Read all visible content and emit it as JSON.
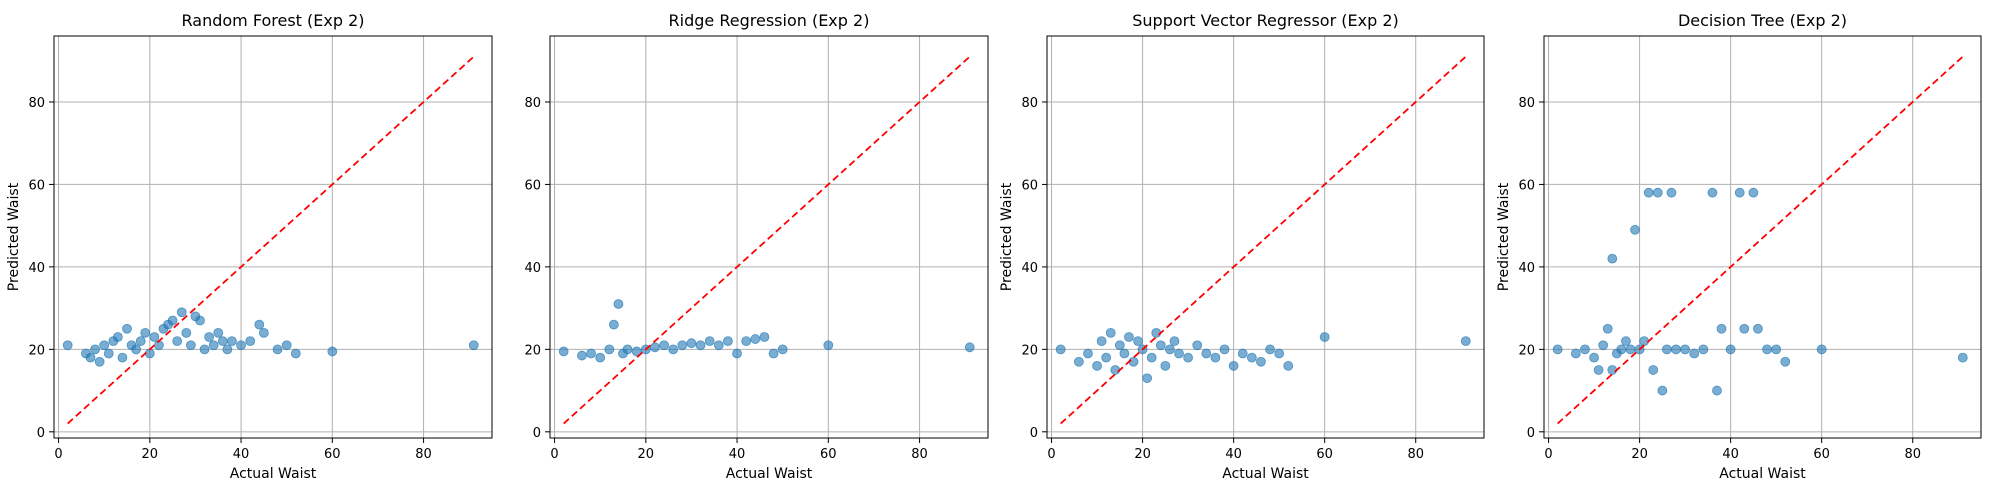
{
  "chart_data": [
    {
      "type": "scatter",
      "title": "Random Forest (Exp 2)",
      "xlabel": "Actual Waist",
      "ylabel": "Predicted Waist",
      "xlim": [
        -1,
        95
      ],
      "ylim": [
        -1.5,
        96
      ],
      "xticks": [
        0,
        20,
        40,
        60,
        80
      ],
      "yticks": [
        0,
        20,
        40,
        60,
        80
      ],
      "grid": true,
      "point_color": "#1f77b4",
      "reference_line": {
        "from": [
          2,
          2
        ],
        "to": [
          91,
          91
        ],
        "color": "#ff0000",
        "style": "dashed"
      },
      "points": [
        [
          2,
          21
        ],
        [
          6,
          19
        ],
        [
          7,
          18
        ],
        [
          8,
          20
        ],
        [
          9,
          17
        ],
        [
          10,
          21
        ],
        [
          11,
          19
        ],
        [
          12,
          22
        ],
        [
          13,
          23
        ],
        [
          14,
          18
        ],
        [
          15,
          25
        ],
        [
          16,
          21
        ],
        [
          17,
          20
        ],
        [
          18,
          22
        ],
        [
          19,
          24
        ],
        [
          20,
          19
        ],
        [
          21,
          23
        ],
        [
          22,
          21
        ],
        [
          23,
          25
        ],
        [
          24,
          26
        ],
        [
          25,
          27
        ],
        [
          26,
          22
        ],
        [
          27,
          29
        ],
        [
          28,
          24
        ],
        [
          29,
          21
        ],
        [
          30,
          28
        ],
        [
          31,
          27
        ],
        [
          32,
          20
        ],
        [
          33,
          23
        ],
        [
          34,
          21
        ],
        [
          35,
          24
        ],
        [
          36,
          22
        ],
        [
          37,
          20
        ],
        [
          38,
          22
        ],
        [
          40,
          21
        ],
        [
          42,
          22
        ],
        [
          44,
          26
        ],
        [
          45,
          24
        ],
        [
          48,
          20
        ],
        [
          50,
          21
        ],
        [
          52,
          19
        ],
        [
          60,
          19.5
        ],
        [
          91,
          21
        ]
      ]
    },
    {
      "type": "scatter",
      "title": "Ridge Regression (Exp 2)",
      "xlabel": "Actual Waist",
      "ylabel": "",
      "xlim": [
        -1,
        95
      ],
      "ylim": [
        -1.5,
        96
      ],
      "xticks": [
        0,
        20,
        40,
        60,
        80
      ],
      "yticks": [
        0,
        20,
        40,
        60,
        80
      ],
      "grid": true,
      "point_color": "#1f77b4",
      "reference_line": {
        "from": [
          2,
          2
        ],
        "to": [
          91,
          91
        ],
        "color": "#ff0000",
        "style": "dashed"
      },
      "points": [
        [
          2,
          19.5
        ],
        [
          6,
          18.5
        ],
        [
          8,
          19
        ],
        [
          10,
          18
        ],
        [
          12,
          20
        ],
        [
          13,
          26
        ],
        [
          14,
          31
        ],
        [
          15,
          19
        ],
        [
          16,
          20
        ],
        [
          18,
          19.5
        ],
        [
          20,
          20
        ],
        [
          22,
          20.5
        ],
        [
          24,
          21
        ],
        [
          26,
          20
        ],
        [
          28,
          21
        ],
        [
          30,
          21.5
        ],
        [
          32,
          21
        ],
        [
          34,
          22
        ],
        [
          36,
          21
        ],
        [
          38,
          22
        ],
        [
          40,
          19
        ],
        [
          42,
          22
        ],
        [
          44,
          22.5
        ],
        [
          46,
          23
        ],
        [
          48,
          19
        ],
        [
          50,
          20
        ],
        [
          60,
          21
        ],
        [
          91,
          20.5
        ]
      ]
    },
    {
      "type": "scatter",
      "title": "Support Vector Regressor (Exp 2)",
      "xlabel": "Actual Waist",
      "ylabel": "Predicted Waist",
      "xlim": [
        -1,
        95
      ],
      "ylim": [
        -1.5,
        96
      ],
      "xticks": [
        0,
        20,
        40,
        60,
        80
      ],
      "yticks": [
        0,
        20,
        40,
        60,
        80
      ],
      "grid": true,
      "point_color": "#1f77b4",
      "reference_line": {
        "from": [
          2,
          2
        ],
        "to": [
          91,
          91
        ],
        "color": "#ff0000",
        "style": "dashed"
      },
      "points": [
        [
          2,
          20
        ],
        [
          6,
          17
        ],
        [
          8,
          19
        ],
        [
          10,
          16
        ],
        [
          11,
          22
        ],
        [
          12,
          18
        ],
        [
          13,
          24
        ],
        [
          14,
          15
        ],
        [
          15,
          21
        ],
        [
          16,
          19
        ],
        [
          17,
          23
        ],
        [
          18,
          17
        ],
        [
          19,
          22
        ],
        [
          20,
          20
        ],
        [
          21,
          13
        ],
        [
          22,
          18
        ],
        [
          23,
          24
        ],
        [
          24,
          21
        ],
        [
          25,
          16
        ],
        [
          26,
          20
        ],
        [
          27,
          22
        ],
        [
          28,
          19
        ],
        [
          30,
          18
        ],
        [
          32,
          21
        ],
        [
          34,
          19
        ],
        [
          36,
          18
        ],
        [
          38,
          20
        ],
        [
          40,
          16
        ],
        [
          42,
          19
        ],
        [
          44,
          18
        ],
        [
          46,
          17
        ],
        [
          48,
          20
        ],
        [
          50,
          19
        ],
        [
          52,
          16
        ],
        [
          60,
          23
        ],
        [
          91,
          22
        ]
      ]
    },
    {
      "type": "scatter",
      "title": "Decision Tree (Exp 2)",
      "xlabel": "Actual Waist",
      "ylabel": "Predicted Waist",
      "xlim": [
        -1,
        95
      ],
      "ylim": [
        -1.5,
        96
      ],
      "xticks": [
        0,
        20,
        40,
        60,
        80
      ],
      "yticks": [
        0,
        20,
        40,
        60,
        80
      ],
      "grid": true,
      "point_color": "#1f77b4",
      "reference_line": {
        "from": [
          2,
          2
        ],
        "to": [
          91,
          91
        ],
        "color": "#ff0000",
        "style": "dashed"
      },
      "points": [
        [
          2,
          20
        ],
        [
          6,
          19
        ],
        [
          8,
          20
        ],
        [
          10,
          18
        ],
        [
          11,
          15
        ],
        [
          12,
          21
        ],
        [
          13,
          25
        ],
        [
          14,
          15
        ],
        [
          14,
          42
        ],
        [
          15,
          19
        ],
        [
          16,
          20
        ],
        [
          17,
          22
        ],
        [
          18,
          20
        ],
        [
          19,
          49
        ],
        [
          20,
          20
        ],
        [
          21,
          22
        ],
        [
          22,
          58
        ],
        [
          23,
          15
        ],
        [
          24,
          58
        ],
        [
          25,
          10
        ],
        [
          26,
          20
        ],
        [
          27,
          58
        ],
        [
          28,
          20
        ],
        [
          30,
          20
        ],
        [
          32,
          19
        ],
        [
          34,
          20
        ],
        [
          36,
          58
        ],
        [
          37,
          10
        ],
        [
          38,
          25
        ],
        [
          40,
          20
        ],
        [
          42,
          58
        ],
        [
          43,
          25
        ],
        [
          45,
          58
        ],
        [
          46,
          25
        ],
        [
          48,
          20
        ],
        [
          50,
          20
        ],
        [
          52,
          17
        ],
        [
          60,
          20
        ],
        [
          91,
          18
        ]
      ]
    }
  ]
}
